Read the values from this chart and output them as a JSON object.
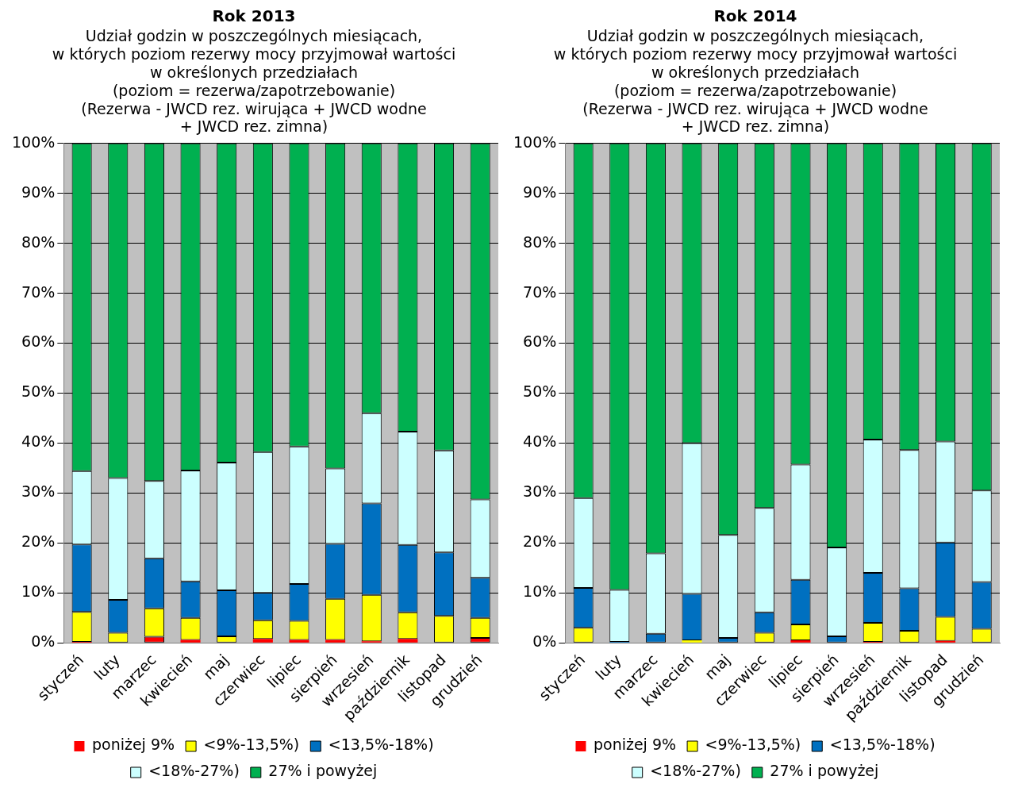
{
  "chart_data": [
    {
      "type": "bar",
      "stacked": true,
      "title": "Rok 2013",
      "subtitle": "Udział godzin w poszczególnych miesiącach,\nw których poziom rezerwy mocy przyjmował wartości\nw określonych przedziałach\n(poziom = rezerwa/zapotrzebowanie)\n(Rezerwa - JWCD rez. wirująca + JWCD wodne\n+ JWCD rez. zimna)",
      "categories": [
        "styczeń",
        "luty",
        "marzec",
        "kwiecień",
        "maj",
        "czerwiec",
        "lipiec",
        "sierpień",
        "wrzesień",
        "październik",
        "listopad",
        "grudzień"
      ],
      "series": [
        {
          "name": "poniżej 9%",
          "color": "#ff0000",
          "values": [
            0.2,
            0,
            1.2,
            0.6,
            0,
            0.8,
            0.6,
            0.6,
            0.3,
            0.8,
            0,
            1.0
          ]
        },
        {
          "name": "<9%-13,5%)",
          "color": "#ffff00",
          "values": [
            6.0,
            2.0,
            5.7,
            4.4,
            1.3,
            3.7,
            3.8,
            8.2,
            9.3,
            5.3,
            5.4,
            4.0
          ]
        },
        {
          "name": "<13,5%-18%)",
          "color": "#0070c0",
          "values": [
            13.5,
            6.6,
            10.0,
            7.3,
            9.2,
            5.5,
            7.4,
            11.0,
            18.3,
            13.5,
            12.7,
            8.0
          ]
        },
        {
          "name": "<18%-27%)",
          "color": "#ccffff",
          "values": [
            14.7,
            24.4,
            15.5,
            22.2,
            25.6,
            28.2,
            27.5,
            15.1,
            18.1,
            22.7,
            20.4,
            15.7
          ]
        },
        {
          "name": "27% i powyżej",
          "color": "#00b050",
          "values": [
            65.6,
            67.0,
            67.6,
            65.5,
            63.9,
            61.8,
            60.7,
            65.1,
            54.0,
            57.7,
            61.5,
            71.3
          ]
        }
      ],
      "ylim": [
        0,
        100
      ],
      "yticks": [
        {
          "value": 0,
          "label": "0%"
        },
        {
          "value": 10,
          "label": "10%"
        },
        {
          "value": 20,
          "label": "20%"
        },
        {
          "value": 30,
          "label": "30%"
        },
        {
          "value": 40,
          "label": "40%"
        },
        {
          "value": 50,
          "label": "50%"
        },
        {
          "value": 60,
          "label": "60%"
        },
        {
          "value": 70,
          "label": "70%"
        },
        {
          "value": 80,
          "label": "80%"
        },
        {
          "value": 90,
          "label": "90%"
        },
        {
          "value": 100,
          "label": "100%"
        }
      ],
      "grid": "y",
      "legend": "bottom"
    },
    {
      "type": "bar",
      "stacked": true,
      "title": "Rok 2014",
      "subtitle": "Udział godzin w poszczególnych miesiącach,\nw których poziom rezerwy mocy przyjmował wartości\nw określonych przedziałach\n(poziom = rezerwa/zapotrzebowanie)\n(Rezerwa - JWCD rez. wirująca + JWCD wodne\n+ JWCD rez. zimna)",
      "categories": [
        "styczeń",
        "luty",
        "marzec",
        "kwiecień",
        "maj",
        "czerwiec",
        "lipiec",
        "sierpień",
        "wrzesień",
        "październik",
        "listopad",
        "grudzień"
      ],
      "series": [
        {
          "name": "poniżej 9%",
          "color": "#ff0000",
          "values": [
            0,
            0,
            0,
            0,
            0,
            0,
            0.5,
            0,
            0.2,
            0,
            0.4,
            0
          ]
        },
        {
          "name": "<9%-13,5%)",
          "color": "#ffff00",
          "values": [
            3.0,
            0,
            0,
            0.5,
            0,
            2.0,
            3.2,
            0,
            3.8,
            2.4,
            4.8,
            2.8
          ]
        },
        {
          "name": "<13,5%-18%)",
          "color": "#0070c0",
          "values": [
            8.0,
            0.2,
            1.8,
            9.3,
            1.0,
            4.1,
            8.9,
            1.3,
            10.0,
            8.5,
            14.9,
            9.4
          ]
        },
        {
          "name": "<18%-27%)",
          "color": "#ccffff",
          "values": [
            18.0,
            10.4,
            16.1,
            30.2,
            20.6,
            20.9,
            23.1,
            17.8,
            26.7,
            27.7,
            20.2,
            18.3
          ]
        },
        {
          "name": "27% i powyżej",
          "color": "#00b050",
          "values": [
            71.0,
            89.4,
            82.1,
            60.0,
            78.4,
            73.0,
            64.3,
            80.9,
            59.3,
            61.4,
            59.7,
            69.5
          ]
        }
      ],
      "ylim": [
        0,
        100
      ],
      "yticks": [
        {
          "value": 0,
          "label": "0%"
        },
        {
          "value": 10,
          "label": "10%"
        },
        {
          "value": 20,
          "label": "20%"
        },
        {
          "value": 30,
          "label": "30%"
        },
        {
          "value": 40,
          "label": "40%"
        },
        {
          "value": 50,
          "label": "50%"
        },
        {
          "value": 60,
          "label": "60%"
        },
        {
          "value": 70,
          "label": "70%"
        },
        {
          "value": 80,
          "label": "80%"
        },
        {
          "value": 90,
          "label": "90%"
        },
        {
          "value": 100,
          "label": "100%"
        }
      ],
      "grid": "y",
      "legend": "bottom"
    }
  ]
}
